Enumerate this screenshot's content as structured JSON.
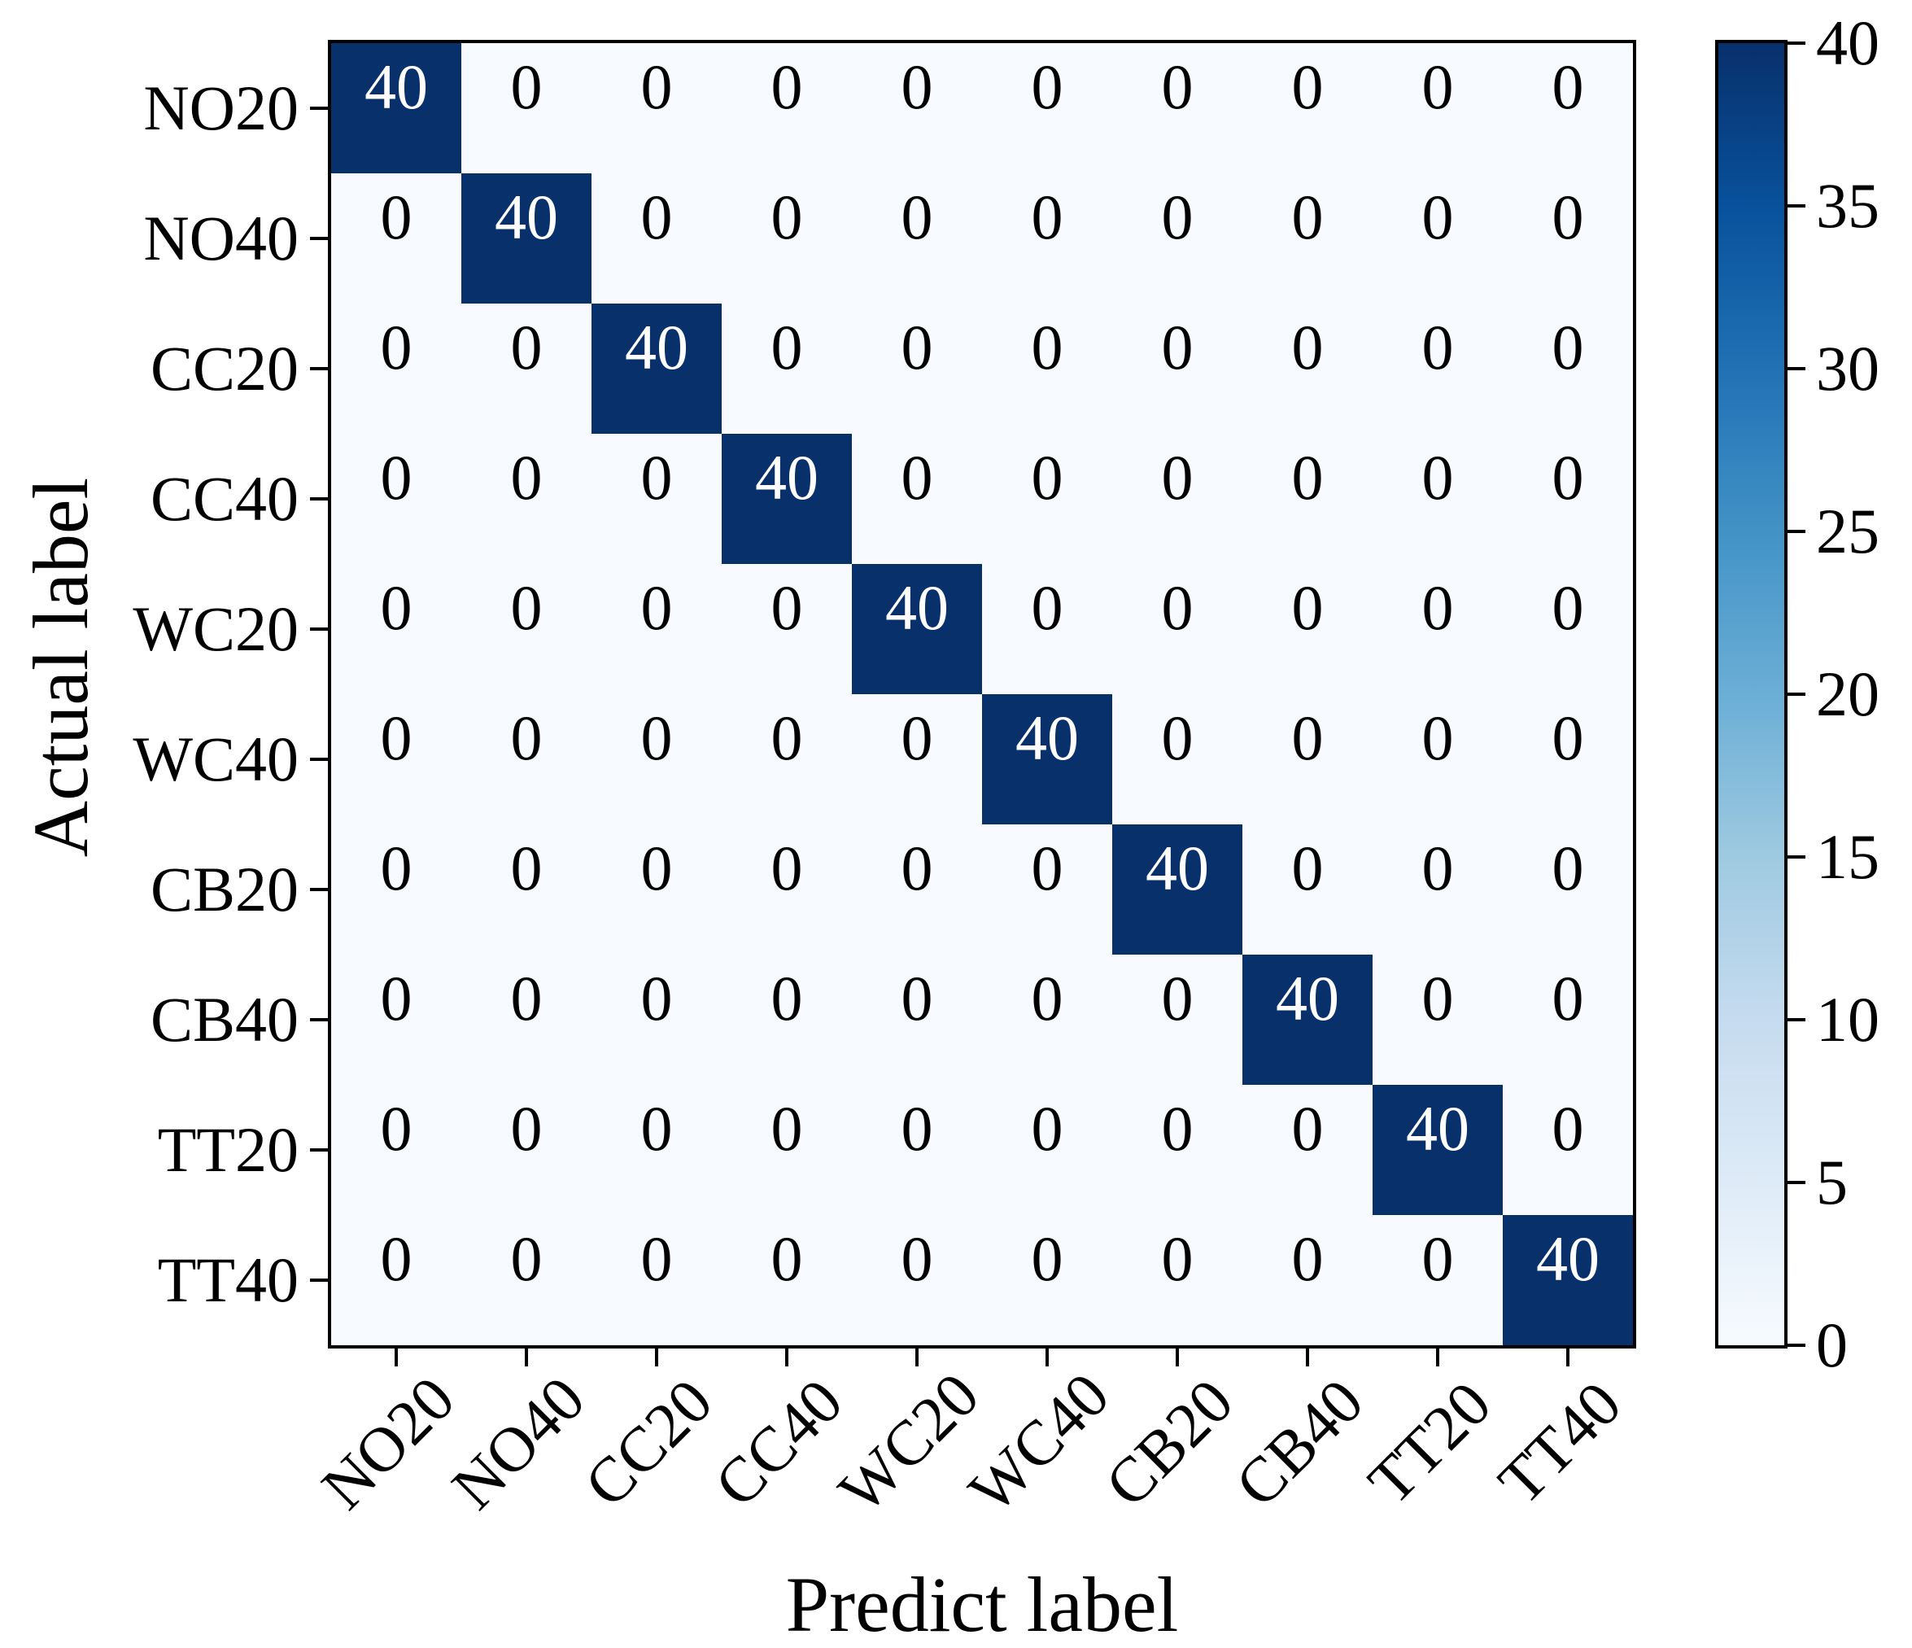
{
  "chart_data": {
    "type": "heatmap",
    "title": "",
    "xlabel": "Predict label",
    "ylabel": "Actual label",
    "categories": [
      "NO20",
      "NO40",
      "CC20",
      "CC40",
      "WC20",
      "WC40",
      "CB20",
      "CB40",
      "TT20",
      "TT40"
    ],
    "matrix": [
      [
        40,
        0,
        0,
        0,
        0,
        0,
        0,
        0,
        0,
        0
      ],
      [
        0,
        40,
        0,
        0,
        0,
        0,
        0,
        0,
        0,
        0
      ],
      [
        0,
        0,
        40,
        0,
        0,
        0,
        0,
        0,
        0,
        0
      ],
      [
        0,
        0,
        0,
        40,
        0,
        0,
        0,
        0,
        0,
        0
      ],
      [
        0,
        0,
        0,
        0,
        40,
        0,
        0,
        0,
        0,
        0
      ],
      [
        0,
        0,
        0,
        0,
        0,
        40,
        0,
        0,
        0,
        0
      ],
      [
        0,
        0,
        0,
        0,
        0,
        0,
        40,
        0,
        0,
        0
      ],
      [
        0,
        0,
        0,
        0,
        0,
        0,
        0,
        40,
        0,
        0
      ],
      [
        0,
        0,
        0,
        0,
        0,
        0,
        0,
        0,
        40,
        0
      ],
      [
        0,
        0,
        0,
        0,
        0,
        0,
        0,
        0,
        0,
        40
      ]
    ],
    "vmin": 0,
    "vmax": 40,
    "colorbar_ticks": [
      0,
      5,
      10,
      15,
      20,
      25,
      30,
      35,
      40
    ],
    "colormap": "Blues",
    "colormap_stops": [
      "#f7fbff",
      "#deebf7",
      "#c6dbef",
      "#9ecae1",
      "#6baed6",
      "#4292c6",
      "#2171b5",
      "#08519c",
      "#08306b"
    ],
    "cell_text_color_on_dark": "#ffffff",
    "cell_text_color_on_light": "#000000",
    "axis_color": "#000000",
    "grid": false,
    "legend_position": "right-colorbar",
    "x_tick_rotation_deg": 45
  }
}
